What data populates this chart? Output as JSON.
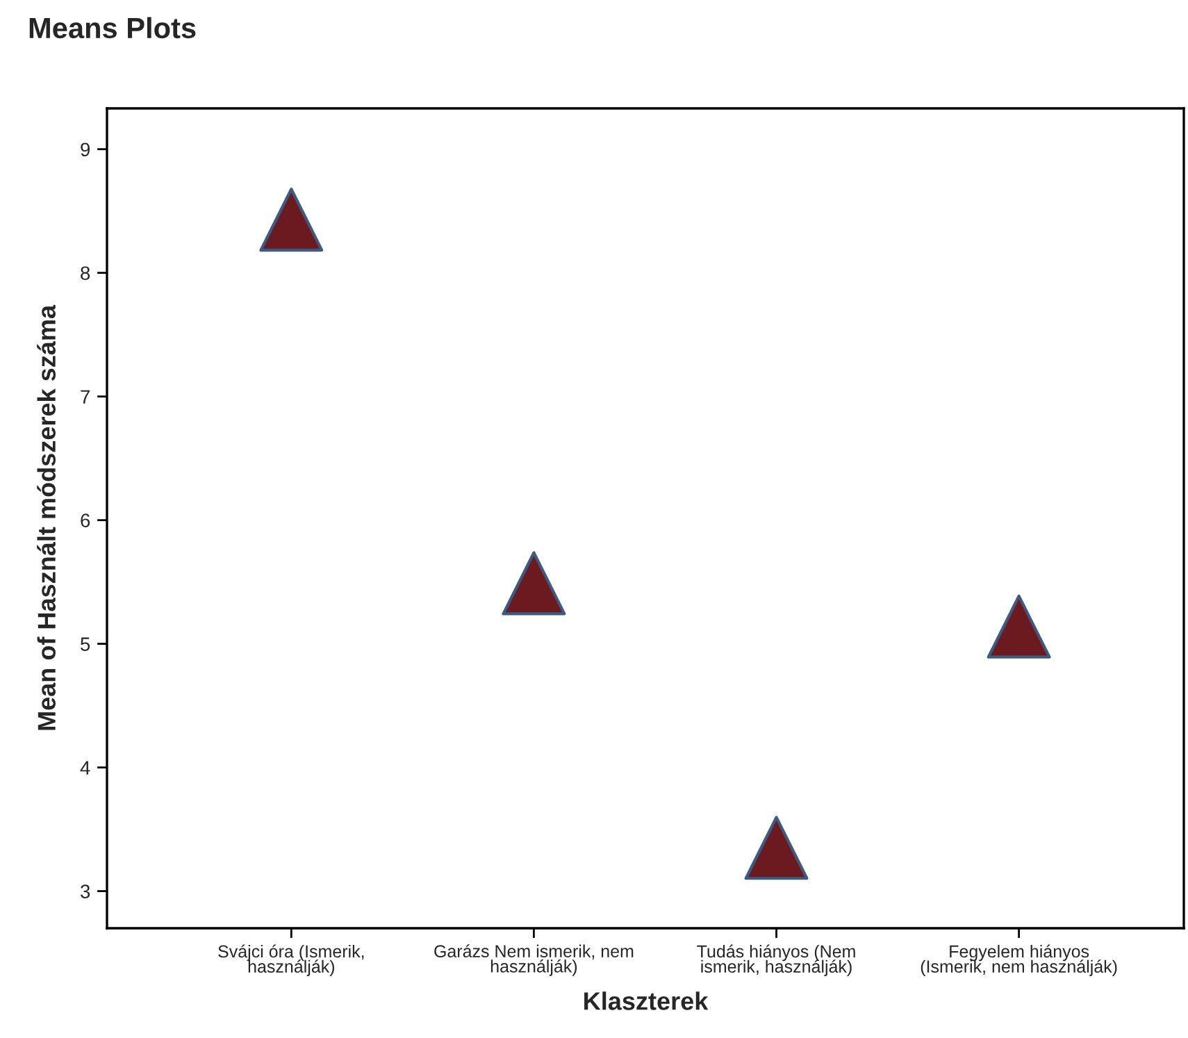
{
  "chart_data": {
    "type": "scatter",
    "title": "Means Plots",
    "xlabel": "Klaszterek",
    "ylabel": "Mean of Használt módszerek száma",
    "categories": [
      "Svájci óra (Ismerik,\nhasználják)",
      "Garázs Nem ismerik, nem\nhasználják)",
      "Tudás hiányos (Nem\nismerik, használják)",
      "Fegyelem hiányos\n(Ismerik, nem használják)"
    ],
    "series": [
      {
        "color": "#6b1a1f",
        "values": [
          8.43,
          5.49,
          3.35,
          5.14
        ]
      }
    ],
    "ylim": [
      2.7,
      9.33
    ],
    "yticks": [
      3,
      4,
      5,
      6,
      7,
      8,
      9
    ],
    "marker": "triangle",
    "grid": false,
    "legend": false
  }
}
